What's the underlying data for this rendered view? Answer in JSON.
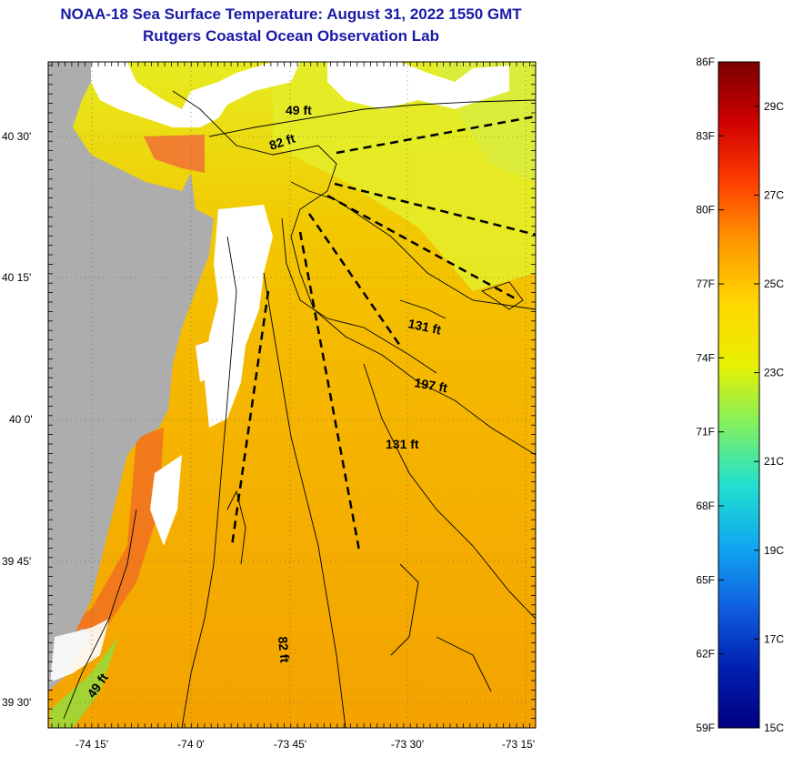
{
  "header": {
    "title_line1": "NOAA-18 Sea Surface Temperature:  August 31, 2022 1550 GMT",
    "title_line2": "Rutgers Coastal Ocean Observation Lab"
  },
  "axes": {
    "lat_labels": [
      "40 30'",
      "40 15'",
      "40 0'",
      "39 45'",
      "39 30'"
    ],
    "lon_labels": [
      "-74 15'",
      "-74 0'",
      "-73 45'",
      "-73 30'",
      "-73 15'"
    ]
  },
  "contour_labels": {
    "c49a": "49 ft",
    "c82a": "82 ft",
    "c131a": "131 ft",
    "c197": "197 ft",
    "c131b": "131 ft",
    "c82b": "82 ft",
    "c49b": "49 ft"
  },
  "colorbar": {
    "f_labels": [
      "86F",
      "83F",
      "80F",
      "77F",
      "74F",
      "71F",
      "68F",
      "65F",
      "62F",
      "59F"
    ],
    "c_labels": [
      "29C",
      "27C",
      "25C",
      "23C",
      "21C",
      "19C",
      "17C",
      "15C"
    ],
    "gradient_colors": [
      "#7a0000",
      "#d00000",
      "#ff4000",
      "#ff9a00",
      "#ffd800",
      "#e8f000",
      "#80f060",
      "#20e0d0",
      "#10a8f0",
      "#1060e0",
      "#0020b0",
      "#000080"
    ]
  },
  "palette": {
    "land": "#adadad",
    "cloud": "#ffffff",
    "sst_warm": "#f4a800",
    "sst_mid": "#f8c400",
    "sst_cool": "#e8ee20",
    "sst_hot": "#f05a10"
  }
}
